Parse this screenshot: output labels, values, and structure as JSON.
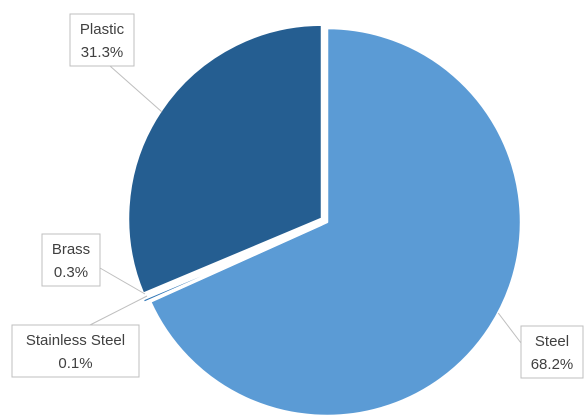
{
  "chart_data": {
    "type": "pie",
    "title": "",
    "slices": [
      {
        "label": "Steel",
        "value": 68.2,
        "value_label": "68.2%",
        "color": "#5b9bd5",
        "exploded": false
      },
      {
        "label": "Stainless Steel",
        "value": 0.1,
        "value_label": "0.1%",
        "color": "#2e75b6",
        "exploded": true
      },
      {
        "label": "Brass",
        "value": 0.3,
        "value_label": "0.3%",
        "color": "#2e75b6",
        "exploded": true
      },
      {
        "label": "Plastic",
        "value": 31.3,
        "value_label": "31.3%",
        "color": "#255e91",
        "exploded": true
      }
    ],
    "legend": "none",
    "data_labels": "callouts with category name and percentage"
  }
}
